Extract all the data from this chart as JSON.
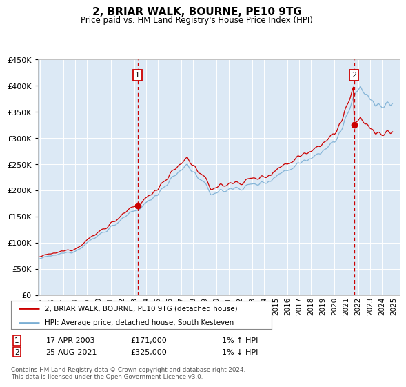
{
  "title": "2, BRIAR WALK, BOURNE, PE10 9TG",
  "subtitle": "Price paid vs. HM Land Registry's House Price Index (HPI)",
  "plot_bg_color": "#dce9f5",
  "hpi_color": "#7bafd4",
  "price_color": "#cc0000",
  "vline_color": "#cc0000",
  "legend_line1": "2, BRIAR WALK, BOURNE, PE10 9TG (detached house)",
  "legend_line2": "HPI: Average price, detached house, South Kesteven",
  "sale1_date": "17-APR-2003",
  "sale1_price": "£171,000",
  "sale1_hpi": "1% ↑ HPI",
  "sale1_year": 2003.29,
  "sale1_value": 171000,
  "sale2_date": "25-AUG-2021",
  "sale2_price": "£325,000",
  "sale2_hpi": "1% ↓ HPI",
  "sale2_year": 2021.64,
  "sale2_value": 325000,
  "ylim": [
    0,
    450000
  ],
  "xlim_start": 1994.8,
  "xlim_end": 2025.5,
  "footer": "Contains HM Land Registry data © Crown copyright and database right 2024.\nThis data is licensed under the Open Government Licence v3.0."
}
